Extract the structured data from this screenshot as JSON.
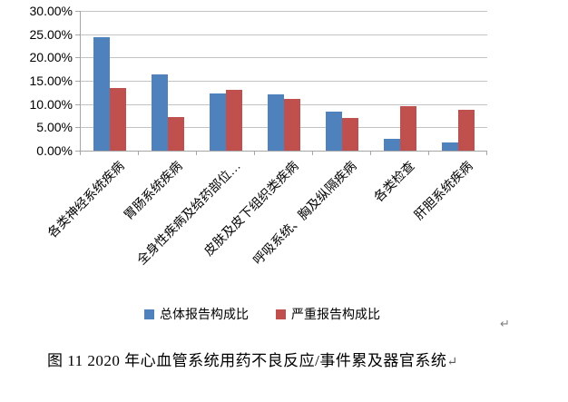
{
  "chart_data": {
    "type": "bar",
    "title": "",
    "categories": [
      "各类神经系统疾病",
      "胃肠系统疾病",
      "全身性疾病及给药部位…",
      "皮肤及皮下组织类疾病",
      "呼吸系统、胸及纵隔疾病",
      "各类检查",
      "肝胆系统疾病"
    ],
    "series": [
      {
        "name": "总体报告构成比",
        "color": "#4F81BD",
        "values": [
          24.4,
          16.4,
          12.2,
          12.0,
          8.4,
          2.5,
          1.7
        ]
      },
      {
        "name": "严重报告构成比",
        "color": "#C0504D",
        "values": [
          13.4,
          7.2,
          13.0,
          11.2,
          7.0,
          9.6,
          8.8
        ]
      }
    ],
    "xlabel": "",
    "ylabel": "",
    "ylim": [
      0,
      30
    ],
    "ytick_step": 5,
    "ytick_labels": [
      "30.00%",
      "25.00%",
      "20.00%",
      "15.00%",
      "10.00%",
      "5.00%",
      "0.00%"
    ],
    "value_unit": "%",
    "grid": true,
    "legend_position": "bottom"
  },
  "colors": {
    "series_total": "#4F81BD",
    "series_serious": "#C0504D",
    "gridline": "#C3C3C3",
    "axis": "#A6A6A6",
    "text": "#000000",
    "paragraph_mark": "#808080"
  },
  "marks": {
    "legend_paragraph_mark": "↵"
  },
  "caption": {
    "text": "图 11  2020 年心血管系统用药不良反应/事件累及器官系统",
    "paragraph_mark": "↵"
  }
}
